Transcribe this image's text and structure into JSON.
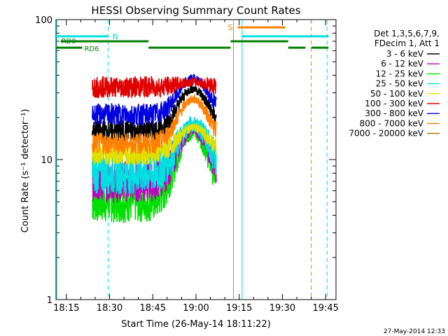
{
  "chart_data": {
    "type": "line",
    "title": "HESSI Observing Summary Count Rates",
    "xlabel": "Start Time (26-May-14 18:11:22)",
    "ylabel": "Count Rate (s⁻¹ detector⁻¹)",
    "yscale": "log",
    "ylim": [
      1,
      100
    ],
    "xlim_minutes": [
      1091.4,
      1188.6
    ],
    "x_ticks": [
      "18:15",
      "18:30",
      "18:45",
      "19:00",
      "19:15",
      "19:30",
      "19:45"
    ],
    "y_ticks": [
      "1",
      "10",
      "100"
    ],
    "legend_header": [
      "Det 1,3,5,6,7,9,",
      "FDecim 1, Att 1"
    ],
    "timestamp": "27-May-2014 12:33",
    "series": [
      {
        "name": "3 - 6 keV",
        "color": "#000000",
        "base": 16,
        "peak": 32
      },
      {
        "name": "6 - 12 keV",
        "color": "#c000c0",
        "base": 7,
        "peak": 17
      },
      {
        "name": "12 - 25 keV",
        "color": "#00e000",
        "base": 5,
        "peak": 16
      },
      {
        "name": "25 - 50 keV",
        "color": "#00e0e0",
        "base": 8,
        "peak": 18
      },
      {
        "name": "50 - 100 keV",
        "color": "#e0e000",
        "base": 11,
        "peak": 17
      },
      {
        "name": "100 - 300 keV",
        "color": "#e00000",
        "base": 33,
        "peak": 36
      },
      {
        "name": "300 - 800 keV",
        "color": "#0000e0",
        "base": 21,
        "peak": 38
      },
      {
        "name": "800 - 7000 keV",
        "color": "#ff8000",
        "base": 13,
        "peak": 27
      },
      {
        "name": "7000 - 20000 keV",
        "color": "#a07000",
        "base": 0,
        "peak": 0
      }
    ],
    "flags": [
      {
        "label": "N",
        "color": "#00e0e0",
        "y": 76,
        "segments": [
          [
            1091.4,
            1109.5
          ],
          [
            1156.0,
            1186.0
          ]
        ]
      },
      {
        "label": "S",
        "color": "#ff8000",
        "y": 88,
        "segments": [
          [
            1154.5,
            1171.0
          ]
        ]
      },
      {
        "label": "RD0",
        "color": "#008000",
        "y": 70,
        "segments": [
          [
            1093.0,
            1104.0
          ],
          [
            1104.0,
            1123.5
          ],
          [
            1152.0,
            1172.0
          ]
        ]
      },
      {
        "label": "RD6",
        "color": "#008000",
        "y": 63,
        "segments": [
          [
            1091.4,
            1100.5
          ],
          [
            1123.5,
            1152.0
          ],
          [
            1172.0,
            1178.0
          ],
          [
            1180.0,
            1186.0
          ]
        ]
      }
    ],
    "vlines": [
      {
        "x": 1091.7,
        "color": "#00e0e0",
        "style": "solid"
      },
      {
        "x": 1109.5,
        "color": "#00e0e0",
        "style": "dashed"
      },
      {
        "x": 1156.0,
        "color": "#00e0e0",
        "style": "solid"
      },
      {
        "x": 1185.5,
        "color": "#00e0e0",
        "style": "dashed"
      },
      {
        "x": 1153.0,
        "color": "#ff8000",
        "style": "solid"
      },
      {
        "x": 1180.0,
        "color": "#ff8000",
        "style": "dashed"
      }
    ],
    "data_window": [
      1104.0,
      1147.0
    ],
    "peak_time": 1139.0
  }
}
